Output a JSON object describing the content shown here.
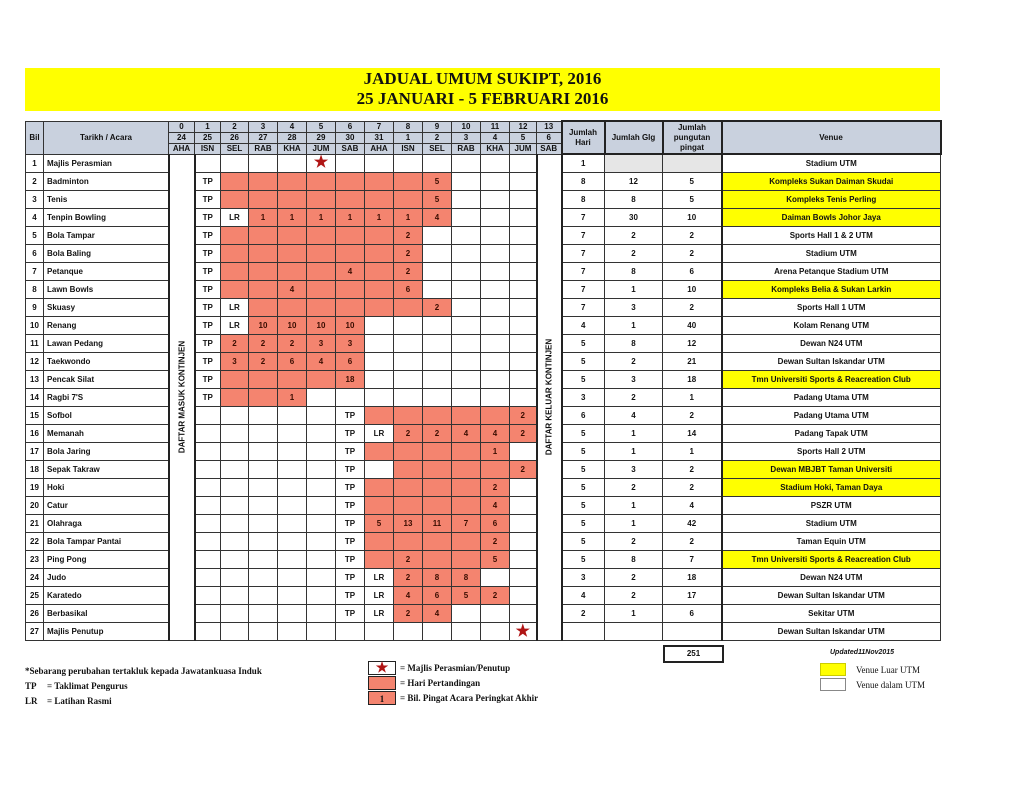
{
  "title": {
    "line1": "JADUAL UMUM SUKIPT, 2016",
    "line2": "25 JANUARI - 5 FEBRUARI 2016"
  },
  "colors": {
    "match_day": "#f4846f",
    "venue_outside": "#ffff00",
    "header": "#c9d1de",
    "star": "#b01515"
  },
  "header": {
    "bil": "Bil",
    "event": "Tarikh / Acara",
    "days": [
      {
        "idx": "0",
        "date": "24",
        "day": "AHA"
      },
      {
        "idx": "1",
        "date": "25",
        "day": "ISN"
      },
      {
        "idx": "2",
        "date": "26",
        "day": "SEL"
      },
      {
        "idx": "3",
        "date": "27",
        "day": "RAB"
      },
      {
        "idx": "4",
        "date": "28",
        "day": "KHA"
      },
      {
        "idx": "5",
        "date": "29",
        "day": "JUM"
      },
      {
        "idx": "6",
        "date": "30",
        "day": "SAB"
      },
      {
        "idx": "7",
        "date": "31",
        "day": "AHA"
      },
      {
        "idx": "8",
        "date": "1",
        "day": "ISN"
      },
      {
        "idx": "9",
        "date": "2",
        "day": "SEL"
      },
      {
        "idx": "10",
        "date": "3",
        "day": "RAB"
      },
      {
        "idx": "11",
        "date": "4",
        "day": "KHA"
      },
      {
        "idx": "12",
        "date": "5",
        "day": "JUM"
      },
      {
        "idx": "13",
        "date": "6",
        "day": "SAB"
      }
    ],
    "days_total": "Jumlah Hari",
    "games_total": "Jumlah Glg",
    "medals_total": "Jumlah pungutan pingat",
    "venue": "Venue"
  },
  "arrival_label": "DAFTAR MASUK KONTINJEN",
  "departure_label": "DAFTAR KELUAR KONTINJEN",
  "rows": [
    {
      "bil": "1",
      "name": "Majlis Perasmian",
      "cells": [
        null,
        null,
        null,
        null,
        {
          "icon": "star"
        },
        null,
        null,
        null,
        null,
        null,
        null,
        null
      ],
      "hari": "1",
      "glg": "",
      "pingat": "",
      "venue": "Stadium UTM",
      "outside": false,
      "grey": true
    },
    {
      "bil": "2",
      "name": "Badminton",
      "cells": [
        {
          "t": "TP"
        },
        {
          "f": 1
        },
        {
          "f": 1
        },
        {
          "f": 1
        },
        {
          "f": 1
        },
        {
          "f": 1
        },
        {
          "f": 1
        },
        {
          "f": 1
        },
        {
          "f": 1,
          "t": "5"
        },
        null,
        null,
        null
      ],
      "hari": "8",
      "glg": "12",
      "pingat": "5",
      "venue": "Kompleks Sukan Daiman Skudai",
      "outside": true
    },
    {
      "bil": "3",
      "name": "Tenis",
      "cells": [
        {
          "t": "TP"
        },
        {
          "f": 1
        },
        {
          "f": 1
        },
        {
          "f": 1
        },
        {
          "f": 1
        },
        {
          "f": 1
        },
        {
          "f": 1
        },
        {
          "f": 1
        },
        {
          "f": 1,
          "t": "5"
        },
        null,
        null,
        null
      ],
      "hari": "8",
      "glg": "8",
      "pingat": "5",
      "venue": "Kompleks Tenis Perling",
      "outside": true
    },
    {
      "bil": "4",
      "name": "Tenpin Bowling",
      "cells": [
        {
          "t": "TP"
        },
        {
          "t": "LR"
        },
        {
          "f": 1,
          "t": "1"
        },
        {
          "f": 1,
          "t": "1"
        },
        {
          "f": 1,
          "t": "1"
        },
        {
          "f": 1,
          "t": "1"
        },
        {
          "f": 1,
          "t": "1"
        },
        {
          "f": 1,
          "t": "1"
        },
        {
          "f": 1,
          "t": "4"
        },
        null,
        null,
        null
      ],
      "hari": "7",
      "glg": "30",
      "pingat": "10",
      "venue": "Daiman Bowls Johor Jaya",
      "outside": true
    },
    {
      "bil": "5",
      "name": "Bola Tampar",
      "cells": [
        {
          "t": "TP"
        },
        {
          "f": 1
        },
        {
          "f": 1
        },
        {
          "f": 1
        },
        {
          "f": 1
        },
        {
          "f": 1
        },
        {
          "f": 1
        },
        {
          "f": 1,
          "t": "2"
        },
        null,
        null,
        null,
        null
      ],
      "hari": "7",
      "glg": "2",
      "pingat": "2",
      "venue": "Sports Hall 1 & 2 UTM",
      "outside": false
    },
    {
      "bil": "6",
      "name": "Bola Baling",
      "cells": [
        {
          "t": "TP"
        },
        {
          "f": 1
        },
        {
          "f": 1
        },
        {
          "f": 1
        },
        {
          "f": 1
        },
        {
          "f": 1
        },
        {
          "f": 1
        },
        {
          "f": 1,
          "t": "2"
        },
        null,
        null,
        null,
        null
      ],
      "hari": "7",
      "glg": "2",
      "pingat": "2",
      "venue": "Stadium UTM",
      "outside": false
    },
    {
      "bil": "7",
      "name": "Petanque",
      "cells": [
        {
          "t": "TP"
        },
        {
          "f": 1
        },
        {
          "f": 1
        },
        {
          "f": 1
        },
        {
          "f": 1
        },
        {
          "f": 1,
          "t": "4"
        },
        {
          "f": 1
        },
        {
          "f": 1,
          "t": "2"
        },
        null,
        null,
        null,
        null
      ],
      "hari": "7",
      "glg": "8",
      "pingat": "6",
      "venue": "Arena Petanque Stadium UTM",
      "outside": false
    },
    {
      "bil": "8",
      "name": "Lawn Bowls",
      "cells": [
        {
          "t": "TP"
        },
        {
          "f": 1
        },
        {
          "f": 1
        },
        {
          "f": 1,
          "t": "4"
        },
        {
          "f": 1
        },
        {
          "f": 1
        },
        {
          "f": 1
        },
        {
          "f": 1,
          "t": "6"
        },
        null,
        null,
        null,
        null
      ],
      "hari": "7",
      "glg": "1",
      "pingat": "10",
      "venue": "Kompleks Belia & Sukan Larkin",
      "outside": true
    },
    {
      "bil": "9",
      "name": "Skuasy",
      "cells": [
        {
          "t": "TP"
        },
        {
          "t": "LR"
        },
        {
          "f": 1
        },
        {
          "f": 1
        },
        {
          "f": 1
        },
        {
          "f": 1
        },
        {
          "f": 1
        },
        {
          "f": 1
        },
        {
          "f": 1,
          "t": "2"
        },
        null,
        null,
        null
      ],
      "hari": "7",
      "glg": "3",
      "pingat": "2",
      "venue": "Sports Hall 1 UTM",
      "outside": false
    },
    {
      "bil": "10",
      "name": "Renang",
      "cells": [
        {
          "t": "TP"
        },
        {
          "t": "LR"
        },
        {
          "f": 1,
          "t": "10"
        },
        {
          "f": 1,
          "t": "10"
        },
        {
          "f": 1,
          "t": "10"
        },
        {
          "f": 1,
          "t": "10"
        },
        null,
        null,
        null,
        null,
        null,
        null
      ],
      "hari": "4",
      "glg": "1",
      "pingat": "40",
      "venue": "Kolam Renang UTM",
      "outside": false
    },
    {
      "bil": "11",
      "name": "Lawan Pedang",
      "cells": [
        {
          "t": "TP"
        },
        {
          "f": 1,
          "t": "2"
        },
        {
          "f": 1,
          "t": "2"
        },
        {
          "f": 1,
          "t": "2"
        },
        {
          "f": 1,
          "t": "3"
        },
        {
          "f": 1,
          "t": "3"
        },
        null,
        null,
        null,
        null,
        null,
        null
      ],
      "hari": "5",
      "glg": "8",
      "pingat": "12",
      "venue": "Dewan N24 UTM",
      "outside": false
    },
    {
      "bil": "12",
      "name": "Taekwondo",
      "cells": [
        {
          "t": "TP"
        },
        {
          "f": 1,
          "t": "3"
        },
        {
          "f": 1,
          "t": "2"
        },
        {
          "f": 1,
          "t": "6"
        },
        {
          "f": 1,
          "t": "4"
        },
        {
          "f": 1,
          "t": "6"
        },
        null,
        null,
        null,
        null,
        null,
        null
      ],
      "hari": "5",
      "glg": "2",
      "pingat": "21",
      "venue": "Dewan Sultan Iskandar UTM",
      "outside": false
    },
    {
      "bil": "13",
      "name": "Pencak Silat",
      "cells": [
        {
          "t": "TP"
        },
        {
          "f": 1
        },
        {
          "f": 1
        },
        {
          "f": 1
        },
        {
          "f": 1
        },
        {
          "f": 1,
          "t": "18"
        },
        null,
        null,
        null,
        null,
        null,
        null
      ],
      "hari": "5",
      "glg": "3",
      "pingat": "18",
      "venue": "Tmn Universiti Sports & Reacreation Club",
      "outside": true
    },
    {
      "bil": "14",
      "name": "Ragbi 7'S",
      "cells": [
        {
          "t": "TP"
        },
        {
          "f": 1
        },
        {
          "f": 1
        },
        {
          "f": 1,
          "t": "1"
        },
        null,
        null,
        null,
        null,
        null,
        null,
        null,
        null
      ],
      "hari": "3",
      "glg": "2",
      "pingat": "1",
      "venue": "Padang Utama UTM",
      "outside": false
    },
    {
      "bil": "15",
      "name": "Sofbol",
      "cells": [
        null,
        null,
        null,
        null,
        null,
        {
          "t": "TP"
        },
        {
          "f": 1
        },
        {
          "f": 1
        },
        {
          "f": 1
        },
        {
          "f": 1
        },
        {
          "f": 1
        },
        {
          "f": 1,
          "t": "2"
        }
      ],
      "hari": "6",
      "glg": "4",
      "pingat": "2",
      "venue": "Padang Utama UTM",
      "outside": false
    },
    {
      "bil": "16",
      "name": "Memanah",
      "cells": [
        null,
        null,
        null,
        null,
        null,
        {
          "t": "TP"
        },
        {
          "t": "LR"
        },
        {
          "f": 1,
          "t": "2"
        },
        {
          "f": 1,
          "t": "2"
        },
        {
          "f": 1,
          "t": "4"
        },
        {
          "f": 1,
          "t": "4"
        },
        {
          "f": 1,
          "t": "2"
        }
      ],
      "hari": "5",
      "glg": "1",
      "pingat": "14",
      "venue": "Padang Tapak UTM",
      "outside": false
    },
    {
      "bil": "17",
      "name": "Bola Jaring",
      "cells": [
        null,
        null,
        null,
        null,
        null,
        {
          "t": "TP"
        },
        {
          "f": 1
        },
        {
          "f": 1
        },
        {
          "f": 1
        },
        {
          "f": 1
        },
        {
          "f": 1,
          "t": "1"
        },
        null
      ],
      "hari": "5",
      "glg": "1",
      "pingat": "1",
      "venue": "Sports Hall 2 UTM",
      "outside": false
    },
    {
      "bil": "18",
      "name": "Sepak Takraw",
      "cells": [
        null,
        null,
        null,
        null,
        null,
        {
          "t": "TP"
        },
        null,
        {
          "f": 1
        },
        {
          "f": 1
        },
        {
          "f": 1
        },
        {
          "f": 1
        },
        {
          "f": 1,
          "t": "2"
        }
      ],
      "hari": "5",
      "glg": "3",
      "pingat": "2",
      "venue": "Dewan MBJBT Taman Universiti",
      "outside": true
    },
    {
      "bil": "19",
      "name": "Hoki",
      "cells": [
        null,
        null,
        null,
        null,
        null,
        {
          "t": "TP"
        },
        {
          "f": 1
        },
        {
          "f": 1
        },
        {
          "f": 1
        },
        {
          "f": 1
        },
        {
          "f": 1,
          "t": "2"
        },
        null
      ],
      "hari": "5",
      "glg": "2",
      "pingat": "2",
      "venue": "Stadium Hoki, Taman Daya",
      "outside": true
    },
    {
      "bil": "20",
      "name": "Catur",
      "cells": [
        null,
        null,
        null,
        null,
        null,
        {
          "t": "TP"
        },
        {
          "f": 1
        },
        {
          "f": 1
        },
        {
          "f": 1
        },
        {
          "f": 1
        },
        {
          "f": 1,
          "t": "4"
        },
        null
      ],
      "hari": "5",
      "glg": "1",
      "pingat": "4",
      "venue": "PSZR UTM",
      "outside": false
    },
    {
      "bil": "21",
      "name": "Olahraga",
      "cells": [
        null,
        null,
        null,
        null,
        null,
        {
          "t": "TP"
        },
        {
          "f": 1,
          "t": "5"
        },
        {
          "f": 1,
          "t": "13"
        },
        {
          "f": 1,
          "t": "11"
        },
        {
          "f": 1,
          "t": "7"
        },
        {
          "f": 1,
          "t": "6"
        },
        null
      ],
      "hari": "5",
      "glg": "1",
      "pingat": "42",
      "venue": "Stadium UTM",
      "outside": false
    },
    {
      "bil": "22",
      "name": "Bola Tampar Pantai",
      "cells": [
        null,
        null,
        null,
        null,
        null,
        {
          "t": "TP"
        },
        {
          "f": 1
        },
        {
          "f": 1
        },
        {
          "f": 1
        },
        {
          "f": 1
        },
        {
          "f": 1,
          "t": "2"
        },
        null
      ],
      "hari": "5",
      "glg": "2",
      "pingat": "2",
      "venue": "Taman Equin UTM",
      "outside": false
    },
    {
      "bil": "23",
      "name": "Ping Pong",
      "cells": [
        null,
        null,
        null,
        null,
        null,
        {
          "t": "TP"
        },
        {
          "f": 1
        },
        {
          "f": 1,
          "t": "2"
        },
        {
          "f": 1
        },
        {
          "f": 1
        },
        {
          "f": 1,
          "t": "5"
        },
        null
      ],
      "hari": "5",
      "glg": "8",
      "pingat": "7",
      "venue": "Tmn Universiti Sports & Reacreation Club",
      "outside": true
    },
    {
      "bil": "24",
      "name": "Judo",
      "cells": [
        null,
        null,
        null,
        null,
        null,
        {
          "t": "TP"
        },
        {
          "t": "LR"
        },
        {
          "f": 1,
          "t": "2"
        },
        {
          "f": 1,
          "t": "8"
        },
        {
          "f": 1,
          "t": "8"
        },
        null,
        null
      ],
      "hari": "3",
      "glg": "2",
      "pingat": "18",
      "venue": "Dewan N24 UTM",
      "outside": false
    },
    {
      "bil": "25",
      "name": "Karatedo",
      "cells": [
        null,
        null,
        null,
        null,
        null,
        {
          "t": "TP"
        },
        {
          "t": "LR"
        },
        {
          "f": 1,
          "t": "4"
        },
        {
          "f": 1,
          "t": "6"
        },
        {
          "f": 1,
          "t": "5"
        },
        {
          "f": 1,
          "t": "2"
        },
        null
      ],
      "hari": "4",
      "glg": "2",
      "pingat": "17",
      "venue": "Dewan Sultan Iskandar UTM",
      "outside": false
    },
    {
      "bil": "26",
      "name": "Berbasikal",
      "cells": [
        null,
        null,
        null,
        null,
        null,
        {
          "t": "TP"
        },
        {
          "t": "LR"
        },
        {
          "f": 1,
          "t": "2"
        },
        {
          "f": 1,
          "t": "4"
        },
        null,
        null,
        null
      ],
      "hari": "2",
      "glg": "1",
      "pingat": "6",
      "venue": "Sekitar UTM",
      "outside": false
    },
    {
      "bil": "27",
      "name": "Majlis Penutup",
      "cells": [
        null,
        null,
        null,
        null,
        null,
        null,
        null,
        null,
        null,
        null,
        null,
        {
          "icon": "star"
        }
      ],
      "hari": "",
      "glg": "",
      "pingat": "",
      "venue": "Dewan Sultan Iskandar UTM",
      "outside": false
    }
  ],
  "total_medals": "251",
  "updated": "Updated11Nov2015",
  "notes": {
    "disclaimer": "*Sebarang perubahan tertakluk kepada Jawatankuasa Induk",
    "tp_key": "TP",
    "tp_label": "= Taklimat Pengurus",
    "lr_key": "LR",
    "lr_label": "= Latihan Rasmi"
  },
  "legend": {
    "star_label": "= Majlis Perasmian/Penutup",
    "fill_label": "= Hari Pertandingan",
    "number_sample": "1",
    "number_label": "= Bil. Pingat Acara Peringkat Akhir",
    "venue_outside": "Venue Luar UTM",
    "venue_inside": "Venue dalam UTM"
  }
}
